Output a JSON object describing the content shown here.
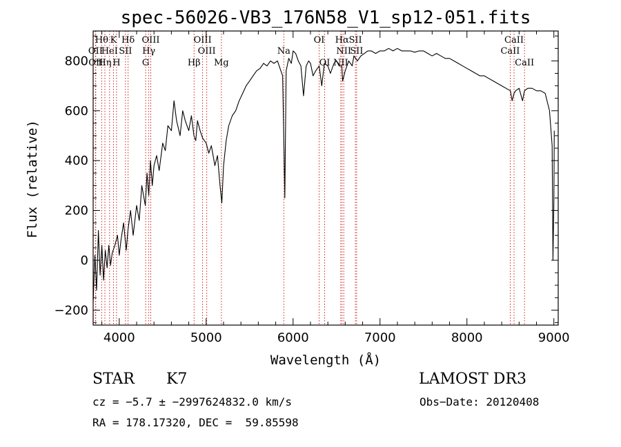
{
  "chart_data": {
    "type": "line",
    "title": "spec-56026-VB3_176N58_V1_sp12-051.fits",
    "xlabel": "Wavelength (Å)",
    "ylabel": "Flux (relative)",
    "xlim": [
      3700,
      9050
    ],
    "ylim": [
      -260,
      920
    ],
    "xticks": [
      4000,
      5000,
      6000,
      7000,
      8000,
      9000
    ],
    "yticks": [
      -200,
      0,
      200,
      400,
      600,
      800
    ],
    "xtick_labels": [
      "4000",
      "5000",
      "6000",
      "7000",
      "8000",
      "9000"
    ],
    "ytick_labels": [
      "−200",
      "0",
      "200",
      "400",
      "600",
      "800"
    ],
    "line_color": "#000000",
    "marker_color": "#cc0000",
    "series": [
      {
        "name": "flux",
        "x": [
          3700,
          3720,
          3740,
          3760,
          3780,
          3800,
          3820,
          3840,
          3860,
          3880,
          3900,
          3920,
          3950,
          3980,
          4000,
          4020,
          4050,
          4080,
          4100,
          4130,
          4160,
          4200,
          4230,
          4260,
          4300,
          4320,
          4340,
          4360,
          4380,
          4400,
          4430,
          4460,
          4500,
          4530,
          4560,
          4600,
          4630,
          4660,
          4700,
          4730,
          4760,
          4800,
          4830,
          4860,
          4880,
          4900,
          4930,
          4960,
          5000,
          5030,
          5060,
          5100,
          5130,
          5160,
          5180,
          5200,
          5230,
          5260,
          5300,
          5340,
          5380,
          5420,
          5460,
          5500,
          5540,
          5580,
          5620,
          5660,
          5700,
          5740,
          5780,
          5820,
          5860,
          5880,
          5895,
          5905,
          5920,
          5950,
          5980,
          6000,
          6030,
          6060,
          6090,
          6120,
          6150,
          6180,
          6200,
          6230,
          6260,
          6300,
          6330,
          6360,
          6400,
          6430,
          6470,
          6500,
          6530,
          6560,
          6570,
          6600,
          6640,
          6680,
          6700,
          6740,
          6780,
          6820,
          6860,
          6900,
          6950,
          7000,
          7050,
          7100,
          7150,
          7200,
          7250,
          7300,
          7350,
          7400,
          7450,
          7500,
          7550,
          7600,
          7650,
          7700,
          7750,
          7800,
          7850,
          7900,
          7950,
          8000,
          8050,
          8100,
          8150,
          8200,
          8250,
          8300,
          8350,
          8400,
          8450,
          8500,
          8520,
          8542,
          8560,
          8600,
          8640,
          8662,
          8700,
          8750,
          8800,
          8850,
          8900,
          8950,
          8980,
          8990,
          9000,
          9005
        ],
        "y": [
          -170,
          20,
          -120,
          120,
          -60,
          60,
          -80,
          40,
          -30,
          60,
          -20,
          30,
          60,
          100,
          20,
          80,
          150,
          40,
          120,
          200,
          100,
          220,
          160,
          300,
          220,
          350,
          260,
          400,
          300,
          380,
          420,
          360,
          470,
          440,
          540,
          520,
          640,
          560,
          500,
          600,
          560,
          520,
          580,
          500,
          480,
          560,
          520,
          490,
          470,
          430,
          460,
          380,
          420,
          300,
          230,
          380,
          480,
          540,
          580,
          600,
          640,
          670,
          700,
          720,
          740,
          760,
          770,
          790,
          780,
          800,
          790,
          800,
          760,
          740,
          460,
          250,
          760,
          810,
          790,
          840,
          830,
          800,
          780,
          660,
          780,
          800,
          790,
          740,
          760,
          780,
          700,
          790,
          780,
          750,
          790,
          800,
          780,
          780,
          720,
          760,
          800,
          780,
          820,
          800,
          820,
          830,
          840,
          840,
          830,
          840,
          840,
          850,
          840,
          850,
          840,
          840,
          840,
          835,
          840,
          840,
          830,
          820,
          830,
          820,
          810,
          810,
          800,
          790,
          780,
          770,
          760,
          750,
          740,
          740,
          730,
          720,
          710,
          700,
          690,
          680,
          640,
          670,
          680,
          690,
          640,
          680,
          690,
          690,
          680,
          680,
          670,
          600,
          460,
          0,
          230,
          520
        ]
      }
    ],
    "spectral_lines": [
      {
        "name": "Hθ",
        "wavelength": 3798,
        "row": 1
      },
      {
        "name": "OII",
        "wavelength": 3727,
        "row": 2
      },
      {
        "name": "OII",
        "wavelength": 3730,
        "row": 3
      },
      {
        "name": "K",
        "wavelength": 3934,
        "row": 1
      },
      {
        "name": "HeI",
        "wavelength": 3889,
        "row": 2
      },
      {
        "name": "Hη",
        "wavelength": 3835,
        "row": 3
      },
      {
        "name": "SII",
        "wavelength": 4072,
        "row": 2
      },
      {
        "name": "H",
        "wavelength": 3969,
        "row": 3
      },
      {
        "name": "Hδ",
        "wavelength": 4102,
        "row": 1
      },
      {
        "name": "OIII",
        "wavelength": 4363,
        "row": 1
      },
      {
        "name": "Hγ",
        "wavelength": 4340,
        "row": 2
      },
      {
        "name": "G",
        "wavelength": 4304,
        "row": 3
      },
      {
        "name": "OIII",
        "wavelength": 4959,
        "row": 1
      },
      {
        "name": "OIII",
        "wavelength": 5007,
        "row": 2
      },
      {
        "name": "Hβ",
        "wavelength": 4861,
        "row": 3
      },
      {
        "name": "Mg",
        "wavelength": 5175,
        "row": 3
      },
      {
        "name": "Na",
        "wavelength": 5893,
        "row": 2
      },
      {
        "name": "OI",
        "wavelength": 6300,
        "row": 1
      },
      {
        "name": "OI",
        "wavelength": 6363,
        "row": 3
      },
      {
        "name": "Hα",
        "wavelength": 6563,
        "row": 1
      },
      {
        "name": "SII",
        "wavelength": 6717,
        "row": 1
      },
      {
        "name": "NII",
        "wavelength": 6583,
        "row": 2
      },
      {
        "name": "SII",
        "wavelength": 6731,
        "row": 2
      },
      {
        "name": "NII",
        "wavelength": 6548,
        "row": 3
      },
      {
        "name": "CaII",
        "wavelength": 8542,
        "row": 1
      },
      {
        "name": "CaII",
        "wavelength": 8498,
        "row": 2
      },
      {
        "name": "CaII",
        "wavelength": 8662,
        "row": 3
      }
    ]
  },
  "info": {
    "object_class": "STAR",
    "subclass": "K7",
    "survey": "LAMOST DR3",
    "velocity": "cz = −5.7 ± −2997624832.0 km/s",
    "obs_date": "Obs−Date: 20120408",
    "coordinates": "RA = 178.17320, DEC =  59.85598"
  }
}
